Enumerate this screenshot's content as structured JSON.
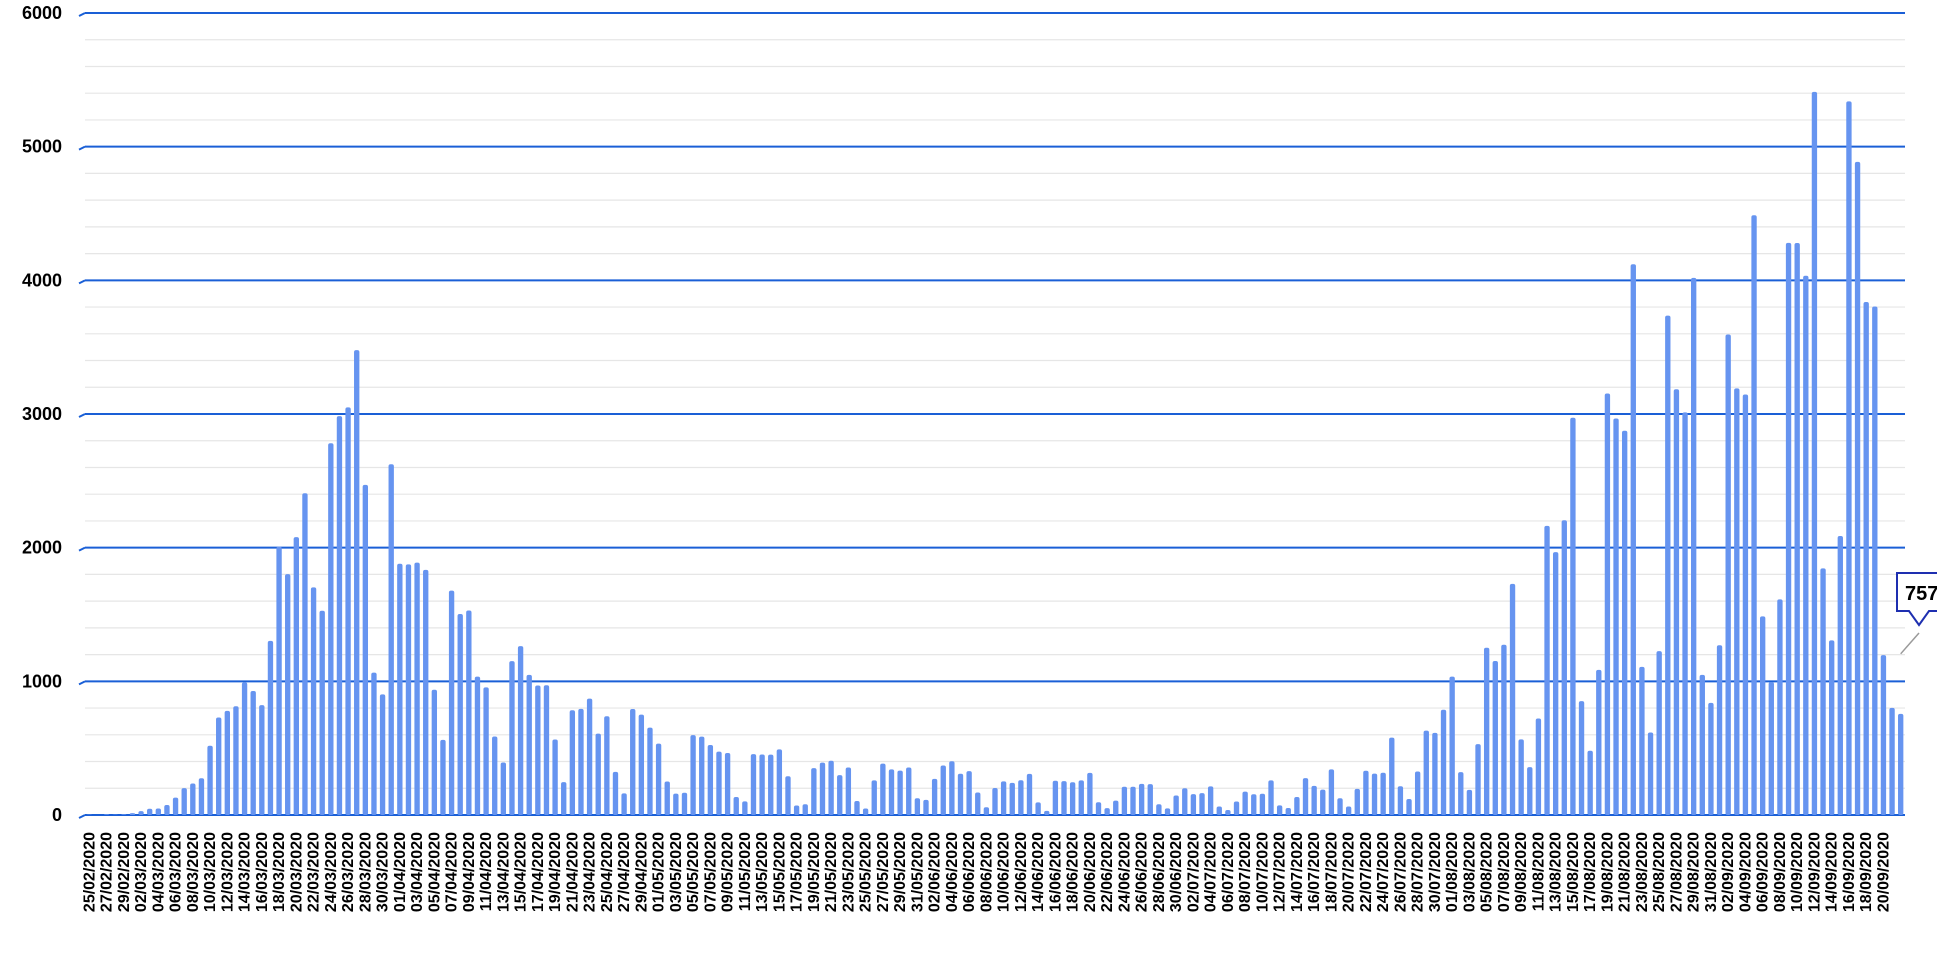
{
  "chart_data": {
    "type": "bar",
    "title": "",
    "xlabel": "",
    "ylabel": "",
    "ylim": [
      0,
      6000
    ],
    "yticks": [
      0,
      1000,
      2000,
      3000,
      4000,
      5000,
      6000
    ],
    "ytick_labels": [
      "0",
      "1000",
      "2000",
      "3000",
      "4000",
      "5000",
      "6000"
    ],
    "grid": {
      "major": true,
      "minor": true
    },
    "colors": {
      "bar": "#6694f0",
      "grid_major": "#1a5fd6",
      "grid_minor": "#e6e6e6",
      "callout_border": "#1e2fb0",
      "leader_line": "#9a9a9a"
    },
    "start_date": "25/02/2020",
    "x_tick_labels": [
      "25/02/2020",
      "27/02/2020",
      "29/02/2020",
      "02/03/2020",
      "04/03/2020",
      "06/03/2020",
      "08/03/2020",
      "10/03/2020",
      "12/03/2020",
      "14/03/2020",
      "16/03/2020",
      "18/03/2020",
      "20/03/2020",
      "22/03/2020",
      "24/03/2020",
      "26/03/2020",
      "28/03/2020",
      "30/03/2020",
      "01/04/2020",
      "03/04/2020",
      "05/04/2020",
      "07/04/2020",
      "09/04/2020",
      "11/04/2020",
      "13/04/2020",
      "15/04/2020",
      "17/04/2020",
      "19/04/2020",
      "21/04/2020",
      "23/04/2020",
      "25/04/2020",
      "27/04/2020",
      "29/04/2020",
      "01/05/2020",
      "03/05/2020",
      "05/05/2020",
      "07/05/2020",
      "09/05/2020",
      "11/05/2020",
      "13/05/2020",
      "15/05/2020",
      "17/05/2020",
      "19/05/2020",
      "21/05/2020",
      "23/05/2020",
      "25/05/2020",
      "27/05/2020",
      "29/05/2020",
      "31/05/2020",
      "02/06/2020",
      "04/06/2020",
      "06/06/2020",
      "08/06/2020",
      "10/06/2020",
      "12/06/2020",
      "14/06/2020",
      "16/06/2020",
      "18/06/2020",
      "20/06/2020",
      "22/06/2020",
      "24/06/2020",
      "26/06/2020",
      "28/06/2020",
      "30/06/2020",
      "02/07/2020",
      "04/07/2020",
      "06/07/2020",
      "08/07/2020",
      "10/07/2020",
      "12/07/2020",
      "14/07/2020",
      "16/07/2020",
      "18/07/2020",
      "20/07/2020",
      "22/07/2020",
      "24/07/2020",
      "26/07/2020",
      "28/07/2020",
      "30/07/2020",
      "01/08/2020",
      "03/08/2020",
      "05/08/2020",
      "07/08/2020",
      "09/08/2020",
      "11/08/2020",
      "13/08/2020",
      "15/08/2020",
      "17/08/2020",
      "19/08/2020",
      "21/08/2020",
      "23/08/2020",
      "25/08/2020",
      "27/08/2020",
      "29/08/2020",
      "31/08/2020",
      "02/09/2020",
      "04/09/2020",
      "06/09/2020",
      "08/09/2020",
      "10/09/2020",
      "12/09/2020",
      "14/09/2020",
      "16/09/2020",
      "18/09/2020",
      "20/09/2020"
    ],
    "values": [
      3,
      0,
      6,
      3,
      6,
      14,
      29,
      47,
      49,
      75,
      130,
      201,
      236,
      275,
      518,
      729,
      779,
      814,
      992,
      928,
      822,
      1303,
      2008,
      1802,
      2079,
      2407,
      1703,
      1528,
      2781,
      2984,
      3050,
      3478,
      2470,
      1065,
      902,
      2624,
      1880,
      1875,
      1888,
      1834,
      937,
      562,
      1679,
      1504,
      1530,
      1035,
      955,
      587,
      393,
      1151,
      1263,
      1048,
      969,
      971,
      565,
      246,
      784,
      794,
      871,
      609,
      739,
      323,
      162,
      793,
      751,
      654,
      534,
      251,
      160,
      166,
      598,
      586,
      524,
      474,
      464,
      135,
      102,
      455,
      453,
      452,
      491,
      290,
      71,
      80,
      351,
      392,
      406,
      298,
      355,
      105,
      49,
      259,
      384,
      341,
      332,
      355,
      125,
      113,
      270,
      370,
      402,
      309,
      328,
      168,
      58,
      202,
      252,
      240,
      260,
      308,
      94,
      31,
      256,
      253,
      245,
      259,
      315,
      95,
      51,
      108,
      211,
      211,
      233,
      231,
      80,
      50,
      146,
      200,
      156,
      164,
      214,
      64,
      37,
      101,
      175,
      155,
      159,
      259,
      72,
      52,
      135,
      276,
      218,
      190,
      341,
      125,
      64,
      195,
      331,
      310,
      316,
      579,
      215,
      120,
      325,
      631,
      614,
      787,
      1035,
      321,
      188,
      530,
      1251,
      1152,
      1274,
      1729,
      566,
      358,
      722,
      2163,
      1967,
      2205,
      2972,
      852,
      481,
      1086,
      3153,
      2966,
      2875,
      4120,
      1108,
      617,
      1226,
      3736,
      3185,
      3012,
      4018,
      1048,
      839,
      1270,
      3595,
      3192,
      3146,
      4487,
      1486,
      994,
      1613,
      4280,
      4279,
      4034,
      5410,
      1845,
      1306,
      2087,
      5339,
      4886,
      3838,
      3804,
      1196,
      801,
      757
    ],
    "callout": {
      "label": "757",
      "value": 757
    }
  }
}
